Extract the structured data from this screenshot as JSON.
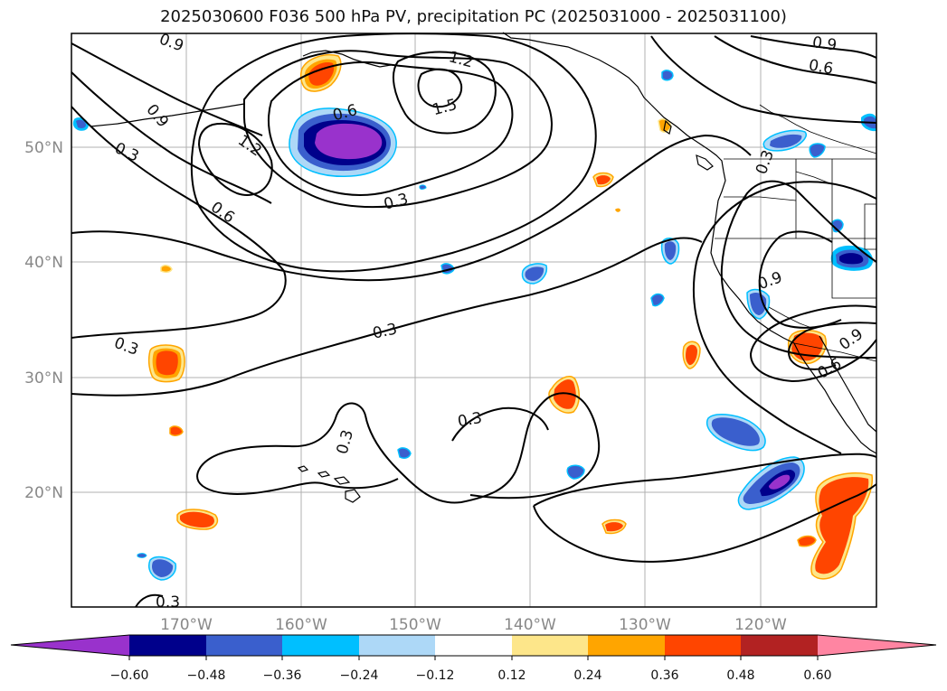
{
  "title": "2025030600 F036 500 hPa PV, precipitation PC (2025031000 - 2025031100)",
  "map": {
    "lon_labels": [
      "170°W",
      "160°W",
      "150°W",
      "140°W",
      "130°W",
      "120°W"
    ],
    "lat_labels": [
      "50°N",
      "40°N",
      "30°N",
      "20°N"
    ],
    "contour_labels": [
      "0.9",
      "0.6",
      "0.3",
      "1.2",
      "1.5",
      "1.2",
      "0.9",
      "0.6",
      "0.3",
      "0.3",
      "0.3",
      "0.3",
      "0.3",
      "0.9",
      "0.6",
      "0.9",
      "0.6",
      "0.9",
      "0.3",
      "0.3"
    ],
    "grid_color": "#b0b0b0",
    "contour_color": "#000000"
  },
  "colorbar": {
    "ticks": [
      "−0.60",
      "−0.48",
      "−0.36",
      "−0.24",
      "−0.12",
      "0.12",
      "0.24",
      "0.36",
      "0.48",
      "0.60"
    ],
    "colors": [
      "#9932cc",
      "#00008b",
      "#3a5fcd",
      "#00bfff",
      "#add8f7",
      "#ffffff",
      "#fde68a",
      "#ffa500",
      "#ff4500",
      "#b22222",
      "#ff85a2"
    ],
    "levels": [
      -0.6,
      -0.48,
      -0.36,
      -0.24,
      -0.12,
      0.12,
      0.24,
      0.36,
      0.48,
      0.6
    ]
  }
}
